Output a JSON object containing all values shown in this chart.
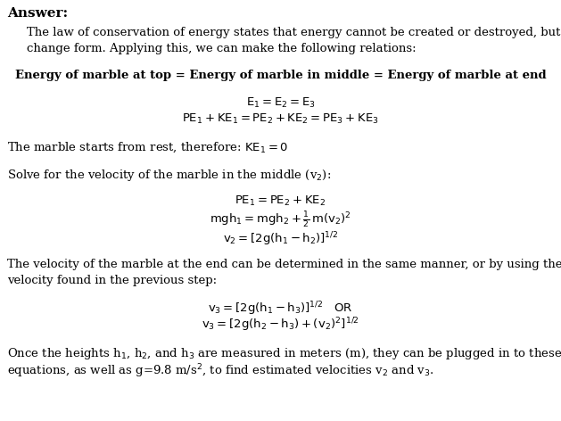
{
  "background_color": "#ffffff",
  "fig_width": 6.29,
  "fig_height": 4.72,
  "dpi": 100,
  "body_fontsize": 9.5,
  "math_fontsize": 9.5
}
